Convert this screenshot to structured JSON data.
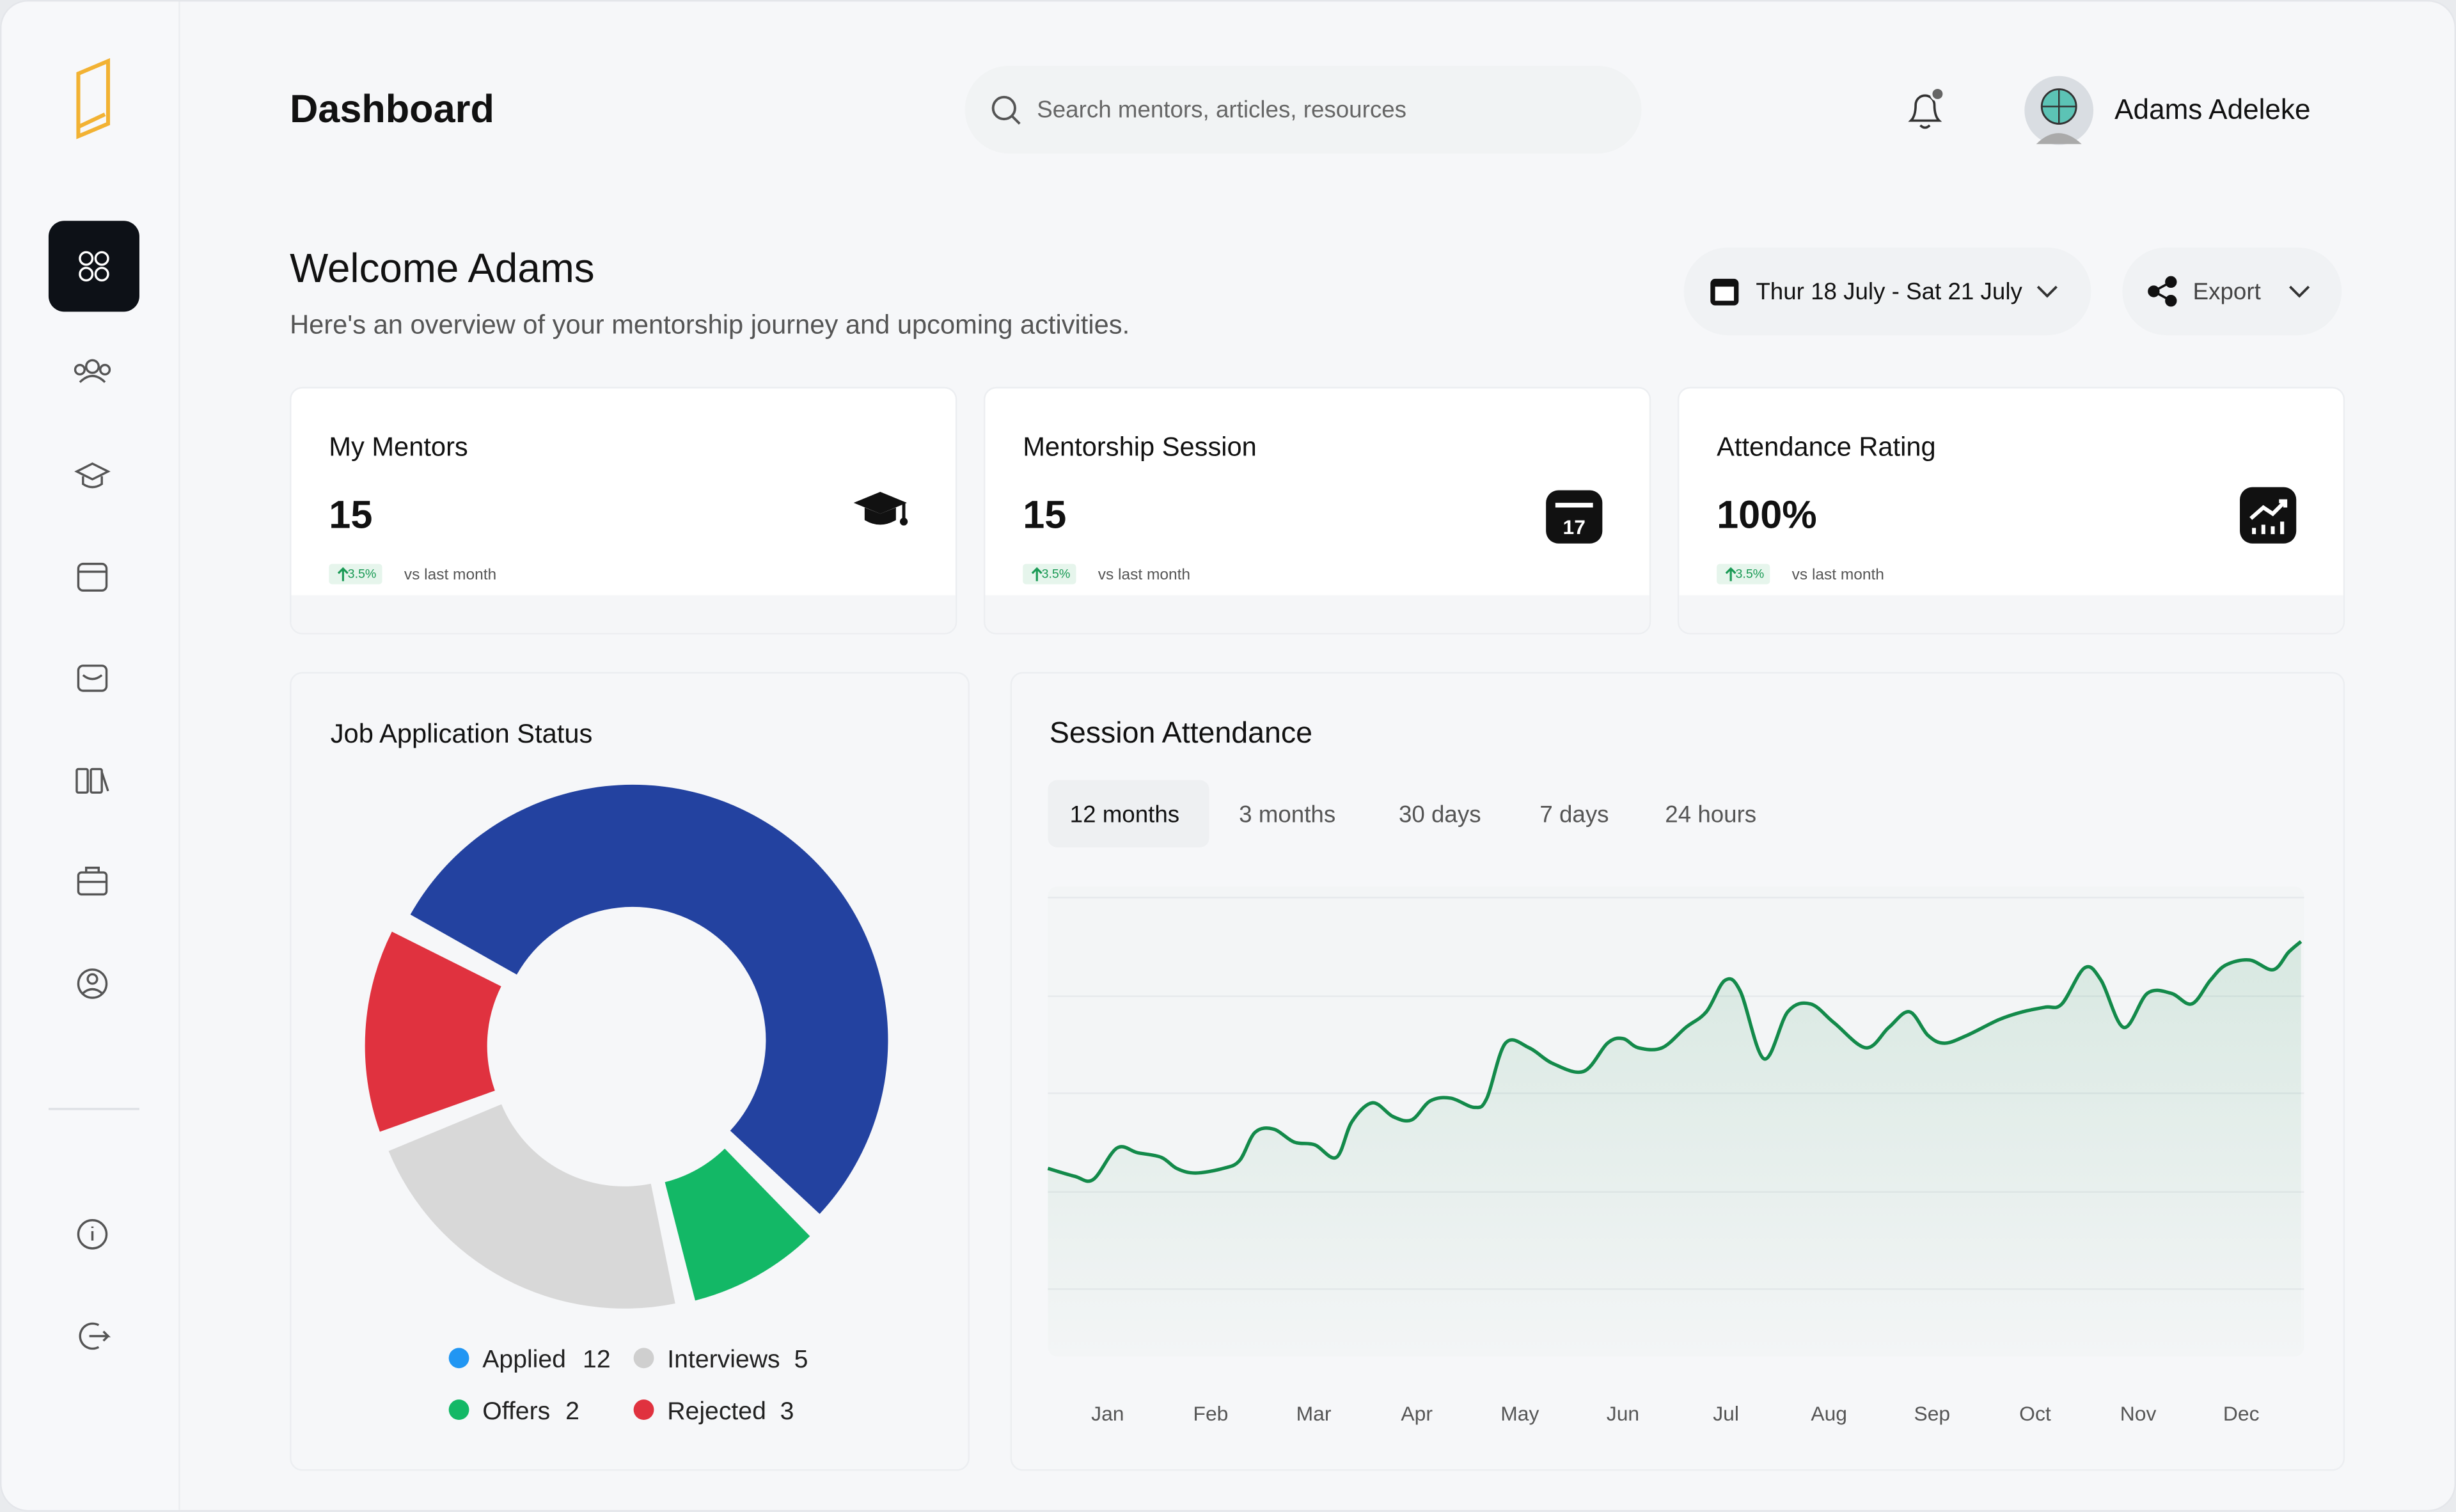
{
  "header": {
    "title": "Dashboard",
    "search_placeholder": "Search mentors, articles, resources",
    "user_name": "Adams Adeleke"
  },
  "welcome": {
    "title": "Welcome Adams",
    "subtitle": "Here's an overview of your mentorship journey and upcoming activities.",
    "date_range": "Thur 18 July - Sat 21 July",
    "export": "Export"
  },
  "cards": [
    {
      "label": "My Mentors",
      "value": "15",
      "change": "3.5%",
      "note": "vs last month"
    },
    {
      "label": "Mentorship Session",
      "value": "15",
      "change": "3.5%",
      "note": "vs last month"
    },
    {
      "label": "Attendance Rating",
      "value": "100%",
      "change": "3.5%",
      "note": "vs last month"
    }
  ],
  "chart_data": [
    {
      "type": "donut",
      "title": "Job Application Status",
      "categories": [
        "Applied",
        "Offers",
        "Interviews",
        "Rejected"
      ],
      "values": [
        12,
        2,
        5,
        3
      ],
      "colors": [
        "#2342a0",
        "#13b866",
        "#d8d8d8",
        "#e0323f"
      ],
      "legend_colors": [
        "#2196f3",
        "#13b866",
        "#cfcfcf",
        "#e0323f"
      ]
    },
    {
      "type": "line",
      "title": "Session Attendance",
      "tabs": [
        "12 months",
        "3 months",
        "30 days",
        "7 days",
        "24 hours"
      ],
      "active_tab": 0,
      "color": "#138a4a",
      "xlim": [
        -0.58,
        11.61
      ],
      "ylim": [
        0,
        100
      ],
      "xticks": [
        {
          "value": 0,
          "label": "Jan"
        },
        {
          "value": 1,
          "label": "Feb"
        },
        {
          "value": 2,
          "label": "Mar"
        },
        {
          "value": 3,
          "label": "Apr"
        },
        {
          "value": 4,
          "label": "May"
        },
        {
          "value": 5,
          "label": "Jun"
        },
        {
          "value": 6,
          "label": "Jul"
        },
        {
          "value": 7,
          "label": "Aug"
        },
        {
          "value": 8,
          "label": "Sep"
        },
        {
          "value": 9,
          "label": "Oct"
        },
        {
          "value": 10,
          "label": "Nov"
        },
        {
          "value": 11,
          "label": "Dec"
        }
      ],
      "x": [
        -0.58,
        -0.32,
        -0.14,
        0.09,
        0.29,
        0.52,
        0.67,
        0.85,
        1.12,
        1.28,
        1.43,
        1.61,
        1.81,
        2.01,
        2.22,
        2.37,
        2.57,
        2.77,
        2.95,
        3.13,
        3.33,
        3.56,
        3.68,
        3.86,
        4.09,
        4.32,
        4.62,
        4.85,
        5.0,
        5.15,
        5.38,
        5.61,
        5.81,
        5.99,
        6.14,
        6.37,
        6.6,
        6.82,
        7.05,
        7.36,
        7.58,
        7.78,
        7.96,
        8.12,
        8.34,
        8.65,
        8.88,
        9.1,
        9.26,
        9.48,
        9.64,
        9.86,
        10.09,
        10.32,
        10.52,
        10.7,
        10.85,
        11.08,
        11.31,
        11.46,
        11.58
      ],
      "values": [
        40.7,
        39.0,
        38.3,
        45.1,
        44.1,
        43.1,
        40.7,
        39.7,
        40.7,
        42.4,
        48.5,
        49.2,
        46.4,
        45.8,
        43.1,
        50.8,
        54.9,
        51.9,
        51.2,
        55.3,
        55.9,
        53.9,
        55.9,
        67.8,
        66.8,
        63.4,
        61.7,
        67.8,
        68.8,
        66.8,
        66.8,
        71.2,
        74.6,
        81.4,
        79.0,
        64.4,
        74.6,
        76.3,
        72.2,
        66.8,
        71.2,
        74.6,
        69.5,
        67.8,
        69.5,
        72.9,
        74.6,
        75.6,
        76.3,
        84.1,
        81.4,
        71.2,
        78.6,
        78.6,
        76.3,
        81.4,
        84.7,
        85.8,
        83.7,
        87.5,
        89.8
      ]
    }
  ]
}
